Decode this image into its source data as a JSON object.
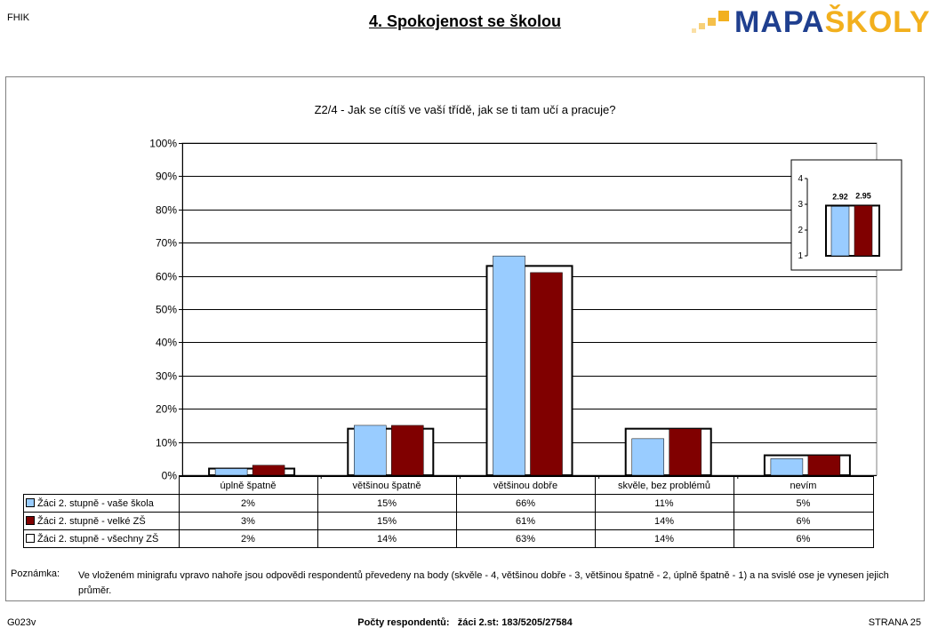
{
  "header": {
    "code": "FHIK",
    "title": "4. Spokojenost se školou",
    "logo_part1": "MAPA",
    "logo_part2": "ŠKOLY"
  },
  "chart_data": {
    "type": "bar",
    "title": "Z2/4 - Jak se cítíš ve vaší třídě, jak se ti tam učí a pracuje?",
    "categories": [
      "úplně špatně",
      "většinou špatně",
      "většinou dobře",
      "skvěle, bez problémů",
      "nevím"
    ],
    "ylim": [
      0,
      100
    ],
    "yticks": [
      "0%",
      "10%",
      "20%",
      "30%",
      "40%",
      "50%",
      "60%",
      "70%",
      "80%",
      "90%",
      "100%"
    ],
    "series": [
      {
        "name": "Žáci 2. stupně - vaše škola",
        "values": [
          2,
          15,
          66,
          11,
          5
        ],
        "labels": [
          "2%",
          "15%",
          "66%",
          "11%",
          "5%"
        ],
        "color": "#99ccff",
        "style": "bar"
      },
      {
        "name": "Žáci 2. stupně - velké ZŠ",
        "values": [
          3,
          15,
          61,
          14,
          6
        ],
        "labels": [
          "3%",
          "15%",
          "61%",
          "14%",
          "6%"
        ],
        "color": "#800000",
        "style": "bar"
      },
      {
        "name": "Žáci 2. stupně - všechny ZŠ",
        "values": [
          2,
          14,
          63,
          14,
          6
        ],
        "labels": [
          "2%",
          "14%",
          "63%",
          "14%",
          "6%"
        ],
        "color": "#ffffff",
        "style": "outline"
      }
    ],
    "grid": true,
    "inset": {
      "type": "bar",
      "ylim": [
        1,
        4
      ],
      "yticks": [
        "1",
        "2",
        "3",
        "4"
      ],
      "values": [
        2.92,
        2.95
      ],
      "value_labels": [
        "2.92",
        "2.95"
      ],
      "reference": 2.95,
      "colors": [
        "#99ccff",
        "#800000"
      ]
    }
  },
  "note": {
    "label": "Poznámka:",
    "text": "Ve vloženém minigrafu vpravo nahoře jsou odpovědi respondentů převedeny na body (skvěle - 4, většinou dobře - 3, většinou špatně - 2, úplně špatně - 1) a na svislé ose je vynesen jejich průměr."
  },
  "footer": {
    "code": "G023v",
    "respondents_label": "Počty respondentů:",
    "respondents_value": "žáci 2.st: 183/5205/27584",
    "page": "STRANA 25"
  }
}
